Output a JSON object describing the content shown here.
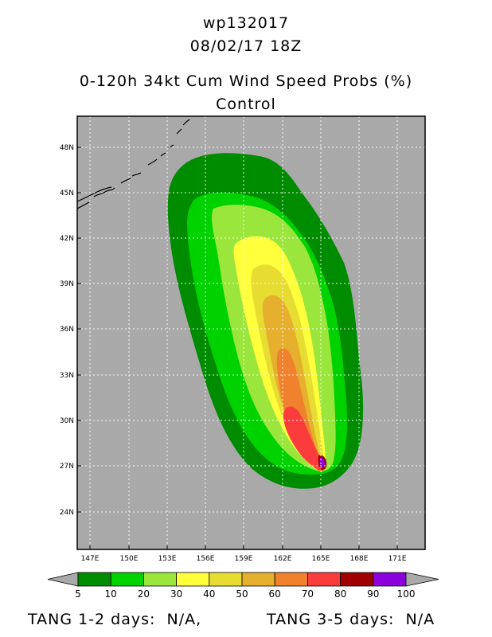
{
  "header": {
    "storm_id": "wp132017",
    "datetime": "08/02/17 18Z",
    "product": "0-120h 34kt Cum Wind Speed Probs (%)",
    "run": "Control"
  },
  "map": {
    "lat_labels": [
      "48N",
      "45N",
      "42N",
      "39N",
      "36N",
      "33N",
      "30N",
      "27N",
      "24N"
    ],
    "lon_labels": [
      "147E",
      "150E",
      "153E",
      "156E",
      "159E",
      "162E",
      "165E",
      "168E",
      "171E"
    ],
    "ocean_color": "#a9a9a9",
    "probability_levels": [
      5,
      10,
      20,
      30,
      40,
      50,
      60,
      70,
      80,
      90,
      100
    ]
  },
  "colorbar": {
    "labels": [
      "5",
      "10",
      "20",
      "30",
      "40",
      "50",
      "60",
      "70",
      "80",
      "90",
      "100"
    ],
    "colors": [
      "#008c00",
      "#00d200",
      "#9be63c",
      "#ffff3c",
      "#e6dc32",
      "#e6af2d",
      "#f0822d",
      "#fa3c3c",
      "#a00000",
      "#8c00dc"
    ]
  },
  "footer": {
    "tang_12": "TANG 1-2 days:  N/A,",
    "tang_35": "TANG 3-5 days:  N/A"
  }
}
